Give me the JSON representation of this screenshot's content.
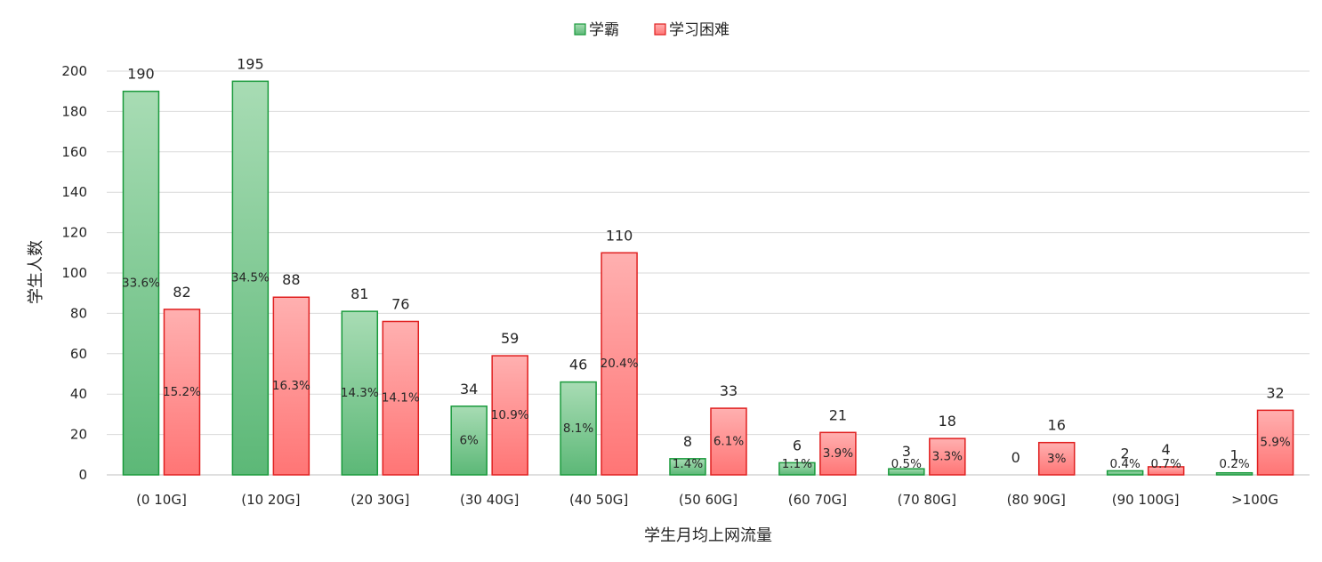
{
  "chart_data": {
    "type": "bar",
    "xlabel": "学生月均上网流量",
    "ylabel": "学生人数",
    "ylim": [
      0,
      200
    ],
    "yticks": [
      0,
      20,
      40,
      60,
      80,
      100,
      120,
      140,
      160,
      180,
      200
    ],
    "grid": true,
    "legend_position": "top",
    "categories": [
      "(0 10G]",
      "(10 20G]",
      "(20 30G]",
      "(30 40G]",
      "(40 50G]",
      "(50 60G]",
      "(60 70G]",
      "(70 80G]",
      "(80 90G]",
      "(90 100G]",
      ">100G"
    ],
    "series": [
      {
        "name": "学霸",
        "color": "#6cc387",
        "values": [
          190,
          195,
          81,
          34,
          46,
          8,
          6,
          3,
          0,
          2,
          1
        ],
        "percent_labels": [
          "33.6%",
          "34.5%",
          "14.3%",
          "6%",
          "8.1%",
          "1.4%",
          "1.1%",
          "0.5%",
          "",
          "0.4%",
          "0.2%"
        ]
      },
      {
        "name": "学习困难",
        "color": "#ff8a8a",
        "values": [
          82,
          88,
          76,
          59,
          110,
          33,
          21,
          18,
          16,
          4,
          32
        ],
        "percent_labels": [
          "15.2%",
          "16.3%",
          "14.1%",
          "10.9%",
          "20.4%",
          "6.1%",
          "3.9%",
          "3.3%",
          "3%",
          "0.7%",
          "5.9%"
        ]
      }
    ]
  }
}
